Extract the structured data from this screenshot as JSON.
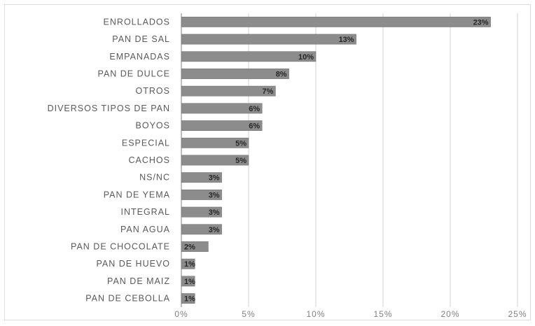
{
  "chart_data": {
    "type": "bar",
    "orientation": "horizontal",
    "title": "",
    "xlabel": "",
    "ylabel": "",
    "categories": [
      "ENROLLADOS",
      "PAN DE SAL",
      "EMPANADAS",
      "PAN DE DULCE",
      "OTROS",
      "DIVERSOS TIPOS DE PAN",
      "BOYOS",
      "ESPECIAL",
      "CACHOS",
      "NS/NC",
      "PAN DE YEMA",
      "INTEGRAL",
      "PAN AGUA",
      "PAN DE CHOCOLATE",
      "PAN DE HUEVO",
      "PAN DE MAIZ",
      "PAN DE CEBOLLA"
    ],
    "values": [
      23,
      13,
      10,
      8,
      7,
      6,
      6,
      5,
      5,
      3,
      3,
      3,
      3,
      2,
      1,
      1,
      1
    ],
    "value_labels": [
      "23%",
      "13%",
      "10%",
      "8%",
      "7%",
      "6%",
      "6%",
      "5%",
      "5%",
      "3%",
      "3%",
      "3%",
      "3%",
      "2%",
      "1%",
      "1%",
      "1%"
    ],
    "xlim": [
      0,
      25
    ],
    "xticks": [
      "0%",
      "5%",
      "10%",
      "15%",
      "20%",
      "25%"
    ],
    "grid": "vertical",
    "legend": "none",
    "colors": {
      "bar": "#8c8c8c",
      "bar_edge": "#6e6e6e",
      "grid": "#d0d0d0",
      "axis": "#808080"
    }
  }
}
